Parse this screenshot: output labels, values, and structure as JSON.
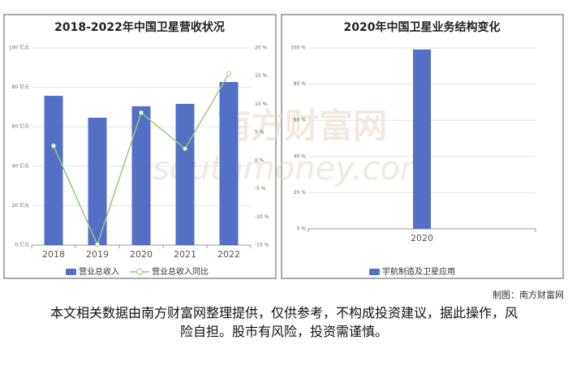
{
  "chart_data": [
    {
      "type": "bar",
      "title": "2018-2022年中国卫星营收状况",
      "categories": [
        "2018",
        "2019",
        "2020",
        "2021",
        "2022"
      ],
      "series": [
        {
          "name": "营业总收入",
          "type": "bar",
          "color": "#5470c6",
          "values": [
            75.7,
            64.6,
            70.4,
            71.6,
            82.7
          ]
        },
        {
          "name": "营业总收入同比",
          "type": "line",
          "axis": "y2",
          "color": "#91cc75",
          "values": [
            2.6,
            -14.9,
            8.5,
            2.1,
            15.4
          ]
        }
      ],
      "ylim": [
        0,
        100
      ],
      "yticks": [
        {
          "value": 0,
          "label": "0 亿元"
        },
        {
          "value": 20,
          "label": "20 亿元"
        },
        {
          "value": 40,
          "label": "40 亿元"
        },
        {
          "value": 60,
          "label": "60 亿元"
        },
        {
          "value": 80,
          "label": "80 亿元"
        },
        {
          "value": 100,
          "label": "100 亿元"
        }
      ],
      "y2lim": [
        -15,
        20
      ],
      "y2ticks": [
        {
          "value": -15,
          "label": "-15 %"
        },
        {
          "value": -10,
          "label": "-10 %"
        },
        {
          "value": -5,
          "label": "-5 %"
        },
        {
          "value": 0,
          "label": "0 %"
        },
        {
          "value": 5,
          "label": "5 %"
        },
        {
          "value": 10,
          "label": "10 %"
        },
        {
          "value": 15,
          "label": "15 %"
        },
        {
          "value": 20,
          "label": "20 %"
        }
      ],
      "grid": true
    },
    {
      "type": "bar",
      "title": "2020年中国卫星业务结构变化",
      "categories": [
        "2020"
      ],
      "series": [
        {
          "name": "宇航制造及卫星应用",
          "type": "bar",
          "color": "#5470c6",
          "values": [
            99.1
          ]
        }
      ],
      "ylim": [
        0,
        100
      ],
      "yticks": [
        {
          "value": 0,
          "label": "0 %"
        },
        {
          "value": 20,
          "label": "20 %"
        },
        {
          "value": 40,
          "label": "40 %"
        },
        {
          "value": 60,
          "label": "60 %"
        },
        {
          "value": 80,
          "label": "80 %"
        },
        {
          "value": 100,
          "label": "100 %"
        }
      ],
      "grid": true
    }
  ],
  "watermark": [
    "南方财富网",
    "southmoney.com"
  ],
  "credit": "制图：南方财富网",
  "disclaimer": "本文相关数据由南方财富网整理提供，仅供参考，不构成投资建议，据此操作，风险自担。股市有风险，投资需谨慎。"
}
